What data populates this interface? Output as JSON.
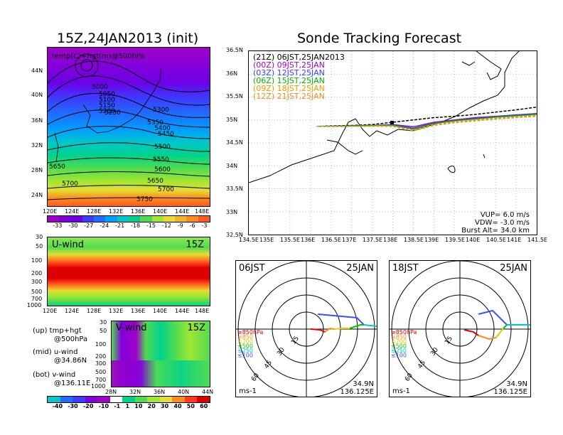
{
  "left": {
    "title": "15Z,24JAN2013 (init)",
    "map_label": "temp(C)+hgt(m)@500hPa",
    "map_lat_ticks": [
      "44N",
      "40N",
      "36N",
      "32N",
      "28N",
      "24N"
    ],
    "map_lon_ticks": [
      "120E",
      "124E",
      "128E",
      "132E",
      "136E",
      "140E",
      "144E",
      "148E"
    ],
    "height_labels": [
      "5000",
      "5050",
      "5100",
      "5150",
      "5200",
      "5250",
      "5300",
      "5350",
      "5400",
      "5450",
      "5500",
      "5550",
      "5600",
      "5650",
      "5650",
      "5700",
      "5700",
      "5750"
    ],
    "temp_scale": {
      "labels": [
        "-33",
        "-30",
        "-27",
        "-24",
        "-21",
        "-18",
        "-15",
        "-12",
        "-9",
        "-6",
        "-3"
      ],
      "colors": [
        "#a000c8",
        "#8200dc",
        "#6e00e6",
        "#3c3cff",
        "#1e6eff",
        "#00a0ff",
        "#00c8c8",
        "#00d28c",
        "#50dc50",
        "#a0e632",
        "#e6dc32",
        "#f0b428",
        "#fa8c1e",
        "#ff5a1e"
      ]
    },
    "uwind": {
      "label": "U-wind",
      "time": "15Z",
      "p_ticks": [
        "30",
        "50",
        "100",
        "200",
        "300",
        "500",
        "700",
        "1000"
      ],
      "lon_ticks": [
        "120E",
        "124E",
        "128E",
        "132E",
        "136E",
        "140E",
        "144E",
        "148E"
      ]
    },
    "vwind": {
      "label": "V-wind",
      "time": "15Z",
      "p_ticks": [
        "30",
        "50",
        "100",
        "200",
        "300",
        "500",
        "700",
        "1000"
      ],
      "lat_ticks": [
        "28N",
        "32N",
        "36N",
        "40N",
        "44N"
      ]
    },
    "legend": [
      {
        "a": "(up) tmp+hgt",
        "b": "@500hPa"
      },
      {
        "a": "(mid) u-wind",
        "b": "@34.86N"
      },
      {
        "a": "(bot) v-wind",
        "b": "@136.11E"
      }
    ],
    "wind_scale": {
      "labels": [
        "-40",
        "-30",
        "-20",
        "-10",
        "-1",
        "1",
        "10",
        "20",
        "30",
        "40",
        "50",
        "60"
      ],
      "colors": [
        "#00c8c8",
        "#1e6eff",
        "#3c3cff",
        "#8200dc",
        "#a000c8",
        "#ffffff",
        "#00d28c",
        "#50dc50",
        "#a0e632",
        "#e6dc32",
        "#fa8c1e",
        "#ff3c1e",
        "#dc0000"
      ]
    }
  },
  "right": {
    "title": "Sonde Tracking Forecast",
    "runs": [
      {
        "label": "(21Z)  06JST,25JAN2013",
        "color": "#000000"
      },
      {
        "label": "(00Z)  09JST,25JAN",
        "color": "#a000c8"
      },
      {
        "label": "(03Z)  12JST,25JAN",
        "color": "#3c3cff"
      },
      {
        "label": "(06Z)  15JST,25JAN",
        "color": "#00b400"
      },
      {
        "label": "(09Z)  18JST,25JAN",
        "color": "#e6a000"
      },
      {
        "label": "(12Z)  21JST,25JAN",
        "color": "#f08c28"
      }
    ],
    "lat_ticks": [
      "36.5N",
      "36N",
      "35.5N",
      "35N",
      "34.5N",
      "34N",
      "33.5N",
      "33N",
      "32.5N"
    ],
    "lon_ticks": [
      "134.5E",
      "135E",
      "135.5E",
      "136E",
      "136.5E",
      "137E",
      "137.5E",
      "138E",
      "138.5E",
      "139E",
      "139.5E",
      "140E",
      "140.5E",
      "141E",
      "141.5E"
    ],
    "info": [
      "VUP=  6.0  m/s",
      "VDW= -3.0  m/s",
      "Burst Alt=  34.0  km"
    ],
    "hodo_left": {
      "time": "06JST",
      "date": "25JAN",
      "lat": "34.9N",
      "lon": "136.125E",
      "unit": "ms-1"
    },
    "hodo_right": {
      "time": "18JST",
      "date": "25JAN",
      "lat": "34.9N",
      "lon": "136.125E",
      "unit": "ms-1"
    },
    "ring_labels": [
      "15",
      "30",
      "45",
      "60"
    ],
    "levels": [
      {
        "label": "≥850hPa",
        "color": "#dc0000"
      },
      {
        "label": "≤850",
        "color": "#fa8c1e"
      },
      {
        "label": "≤700",
        "color": "#e6c800"
      },
      {
        "label": "≤500",
        "color": "#00c800"
      },
      {
        "label": "≤250",
        "color": "#00c8c8"
      },
      {
        "label": "≤100",
        "color": "#3c50ff"
      }
    ]
  },
  "chart_data": [
    {
      "type": "heatmap",
      "title": "15Z,24JAN2013 (init)",
      "variable": "temp(C)+hgt(m)@500hPa",
      "x_ticks": [
        "120E",
        "124E",
        "128E",
        "132E",
        "136E",
        "140E",
        "144E",
        "148E"
      ],
      "y_ticks": [
        "24N",
        "28N",
        "32N",
        "36N",
        "40N",
        "44N"
      ],
      "height_contours_m": [
        5000,
        5050,
        5100,
        5150,
        5200,
        5250,
        5300,
        5350,
        5400,
        5450,
        5500,
        5550,
        5600,
        5650,
        5700,
        5750
      ],
      "temp_levels_C": [
        -33,
        -30,
        -27,
        -24,
        -21,
        -18,
        -15,
        -12,
        -9,
        -6,
        -3
      ]
    },
    {
      "type": "line",
      "title": "Sonde Tracking Forecast",
      "xlabel": "",
      "ylabel": "",
      "xlim": [
        134.5,
        141.5
      ],
      "ylim": [
        32.5,
        36.5
      ],
      "series": [
        {
          "name": "(21Z)  06JST,25JAN2013",
          "x": [
            136.15,
            136.5,
            137,
            137.5,
            138,
            138.5,
            139,
            139.5,
            140,
            140.5,
            141,
            141.5
          ],
          "y": [
            34.86,
            34.87,
            34.88,
            34.9,
            34.95,
            35.0,
            35.05,
            35.08,
            35.12,
            35.17,
            35.22,
            35.28
          ]
        },
        {
          "name": "(00Z)  09JST,25JAN",
          "x": [
            136.15,
            136.5,
            137,
            137.5,
            138,
            138.5,
            139,
            139.5,
            140,
            140.5,
            141,
            141.5
          ],
          "y": [
            34.86,
            34.86,
            34.87,
            34.88,
            34.9,
            34.85,
            34.95,
            35.0,
            35.05,
            35.08,
            35.11,
            35.14
          ]
        },
        {
          "name": "(03Z)  12JST,25JAN",
          "x": [
            136.15,
            136.5,
            137,
            137.5,
            138,
            138.5,
            139,
            139.5,
            140,
            140.5,
            141,
            141.5
          ],
          "y": [
            34.86,
            34.86,
            34.87,
            34.88,
            34.89,
            34.82,
            34.93,
            34.98,
            35.03,
            35.07,
            35.1,
            35.13
          ]
        },
        {
          "name": "(06Z)  15JST,25JAN",
          "x": [
            136.15,
            136.5,
            137,
            137.5,
            138,
            138.5,
            139,
            139.5,
            140,
            140.5,
            141,
            141.5
          ],
          "y": [
            34.86,
            34.86,
            34.87,
            34.88,
            34.88,
            34.8,
            34.92,
            34.98,
            35.02,
            35.06,
            35.09,
            35.12
          ]
        },
        {
          "name": "(09Z)  18JST,25JAN",
          "x": [
            136.15,
            136.5,
            137,
            137.5,
            138,
            138.5,
            139,
            139.5,
            140,
            140.5,
            141,
            141.5
          ],
          "y": [
            34.86,
            34.86,
            34.86,
            34.87,
            34.87,
            34.78,
            34.9,
            34.96,
            35.0,
            35.04,
            35.07,
            35.1
          ]
        },
        {
          "name": "(12Z)  21JST,25JAN",
          "x": [
            136.15,
            136.5,
            137,
            137.5,
            138,
            138.5,
            139,
            139.5,
            140,
            140.5,
            141,
            141.5
          ],
          "y": [
            34.86,
            34.86,
            34.86,
            34.86,
            34.86,
            34.76,
            34.88,
            34.94,
            34.98,
            35.02,
            35.05,
            35.08
          ]
        }
      ]
    }
  ]
}
